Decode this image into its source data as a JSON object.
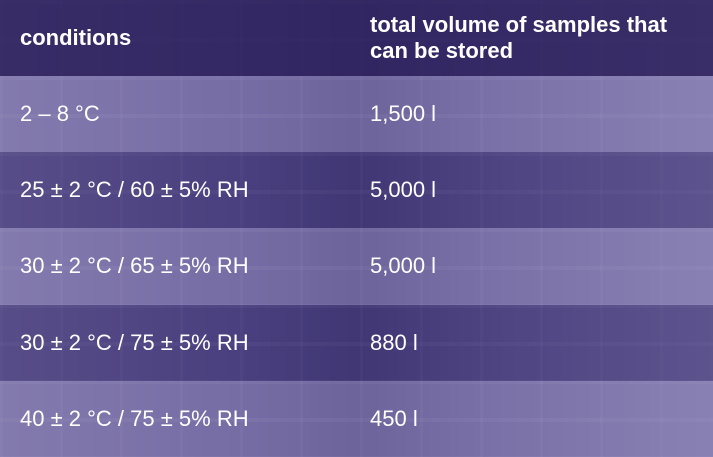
{
  "table": {
    "header": [
      "conditions",
      "total volume of samples that can be stored"
    ],
    "rows": [
      [
        "2 – 8 °C",
        "1,500 l"
      ],
      [
        "25 ± 2 °C / 60 ± 5% RH",
        "5,000 l"
      ],
      [
        "30 ± 2 °C / 65 ± 5% RH",
        "5,000 l"
      ],
      [
        "30 ± 2 °C / 75 ± 5% RH",
        "880 l"
      ],
      [
        "40 ± 2 °C / 75 ± 5% RH",
        "450 l"
      ]
    ]
  }
}
